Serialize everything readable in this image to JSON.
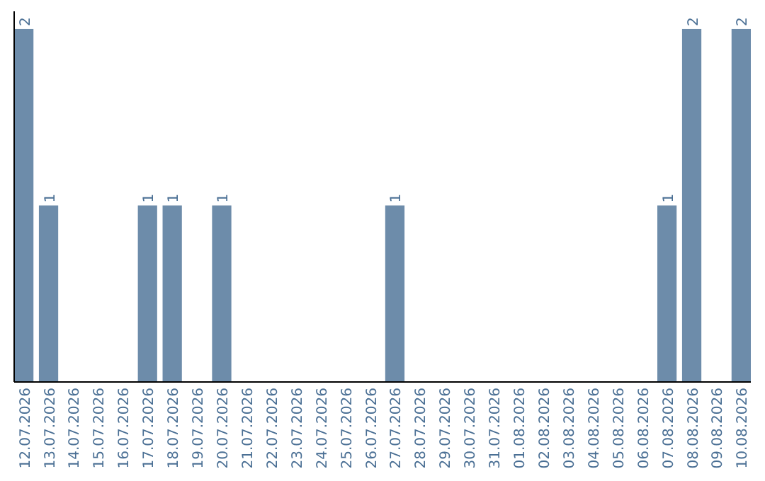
{
  "chart_data": {
    "type": "bar",
    "categories": [
      "12.07.2026",
      "13.07.2026",
      "14.07.2026",
      "15.07.2026",
      "16.07.2026",
      "17.07.2026",
      "18.07.2026",
      "19.07.2026",
      "20.07.2026",
      "21.07.2026",
      "22.07.2026",
      "23.07.2026",
      "24.07.2026",
      "25.07.2026",
      "26.07.2026",
      "27.07.2026",
      "28.07.2026",
      "29.07.2026",
      "30.07.2026",
      "31.07.2026",
      "01.08.2026",
      "02.08.2026",
      "03.08.2026",
      "04.08.2026",
      "05.08.2026",
      "06.08.2026",
      "07.08.2026",
      "08.08.2026",
      "09.08.2026",
      "10.08.2026"
    ],
    "values": [
      2,
      1,
      0,
      0,
      0,
      1,
      1,
      0,
      1,
      0,
      0,
      0,
      0,
      0,
      0,
      1,
      0,
      0,
      0,
      0,
      0,
      0,
      0,
      0,
      0,
      0,
      1,
      2,
      0,
      2
    ],
    "value_labels": [
      "2",
      "1",
      null,
      null,
      null,
      "1",
      "1",
      null,
      "1",
      null,
      null,
      null,
      null,
      null,
      null,
      "1",
      null,
      null,
      null,
      null,
      null,
      null,
      null,
      null,
      null,
      null,
      "1",
      "2",
      null,
      "2"
    ],
    "color": "#6d8caa",
    "grid": false,
    "tick_labels": "x"
  }
}
